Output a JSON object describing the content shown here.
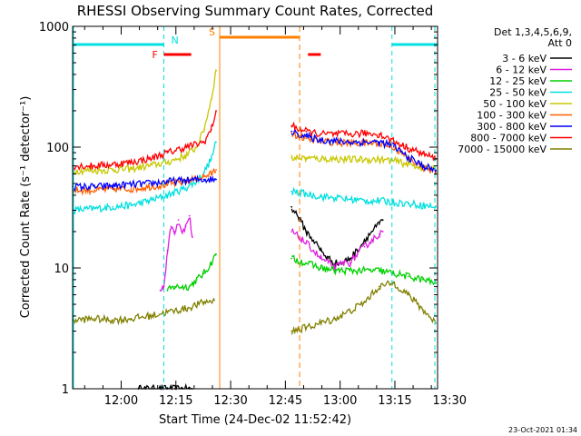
{
  "chart_data": {
    "type": "line",
    "title": "RHESSI Observing Summary Count Rates, Corrected",
    "xlabel": "Start Time (24-Dec-02 11:52:42)",
    "ylabel": "Corrected Count Rate (s⁻¹ detector⁻¹)",
    "y_scale": "log",
    "ylim": [
      1,
      1000
    ],
    "xlim_minutes": [
      -6,
      94
    ],
    "x_ticks": [
      {
        "minute": 7.3,
        "label": "12:00"
      },
      {
        "minute": 22.3,
        "label": "12:15"
      },
      {
        "minute": 37.3,
        "label": "12:30"
      },
      {
        "minute": 52.3,
        "label": "12:45"
      },
      {
        "minute": 67.3,
        "label": "13:00"
      },
      {
        "minute": 82.3,
        "label": "13:15"
      },
      {
        "minute": 97.3,
        "label": "13:30"
      }
    ],
    "y_ticks": [
      {
        "value": 1,
        "label": "1"
      },
      {
        "value": 10,
        "label": "10"
      },
      {
        "value": 100,
        "label": "100"
      },
      {
        "value": 1000,
        "label": "1000"
      }
    ],
    "legend_header": [
      "Det 1,3,4,5,6,9,",
      "Att 0"
    ],
    "series": [
      {
        "name": "3 - 6 keV",
        "color": "#000000",
        "x": [
          12,
          14,
          16,
          18,
          20,
          22,
          24,
          26,
          26.8
        ],
        "values": [
          1,
          1,
          1,
          1,
          1,
          1,
          1,
          1,
          1
        ]
      },
      {
        "name": "6 - 12 keV",
        "color": "#e020e0",
        "x": [
          18,
          19,
          20,
          21,
          22,
          23,
          24,
          25,
          26,
          26.8
        ],
        "values": [
          6.5,
          7,
          14,
          22,
          20,
          25,
          20,
          22,
          27,
          18
        ]
      },
      {
        "name": "12 - 25 keV",
        "color": "#00d000",
        "x": [
          20,
          22,
          24,
          26,
          27,
          28,
          30,
          32,
          33.3
        ],
        "values": [
          6.5,
          7,
          7,
          7,
          7.5,
          8,
          9,
          11,
          13
        ]
      },
      {
        "name": "25 - 50 keV",
        "color": "#00e0e0",
        "x": [
          -6,
          0,
          5,
          10,
          15,
          20,
          25,
          28,
          30,
          32,
          33.3
        ],
        "values": [
          30,
          31,
          32,
          33,
          36,
          40,
          46,
          52,
          62,
          80,
          110
        ]
      },
      {
        "name": "50 - 100 keV",
        "color": "#c8c800",
        "x": [
          -6,
          0,
          5,
          10,
          15,
          20,
          25,
          28,
          30,
          32,
          33.3
        ],
        "values": [
          64,
          64,
          65,
          66,
          70,
          75,
          85,
          100,
          140,
          250,
          430
        ]
      },
      {
        "name": "100 - 300 keV",
        "color": "#ff6000",
        "x": [
          -6,
          0,
          5,
          10,
          15,
          20,
          25,
          28,
          30,
          32,
          33.3
        ],
        "values": [
          44,
          44,
          45,
          45,
          47,
          49,
          52,
          55,
          57,
          60,
          65
        ]
      },
      {
        "name": "300 - 800 keV",
        "color": "#0000ff",
        "x": [
          -6,
          0,
          5,
          10,
          15,
          20,
          25,
          30,
          33.3
        ],
        "values": [
          47,
          47,
          48,
          49,
          50,
          52,
          53,
          54,
          54
        ]
      },
      {
        "name": "800 - 7000 keV",
        "color": "#ff0000",
        "x": [
          -6,
          0,
          5,
          10,
          15,
          20,
          25,
          30,
          32,
          33.3
        ],
        "values": [
          70,
          70,
          72,
          75,
          80,
          90,
          100,
          110,
          140,
          200
        ]
      },
      {
        "name": "7000 - 15000 keV",
        "color": "#808000",
        "x": [
          -6,
          0,
          5,
          10,
          15,
          20,
          25,
          30,
          32.8
        ],
        "values": [
          3.7,
          3.8,
          3.7,
          3.8,
          4.0,
          4.3,
          4.6,
          5.2,
          5.4
        ]
      }
    ],
    "series_after_gap": [
      {
        "name": "3 - 6 keV",
        "color": "#000000",
        "x": [
          54,
          56,
          58,
          60,
          62,
          64,
          66,
          68,
          70,
          72,
          74,
          76,
          78,
          79
        ],
        "values": [
          32,
          26,
          20,
          17,
          14,
          12,
          11,
          11,
          12,
          14,
          17,
          20,
          23,
          25
        ]
      },
      {
        "name": "6 - 12 keV",
        "color": "#e020e0",
        "x": [
          54,
          56,
          58,
          60,
          62,
          64,
          66,
          68,
          70,
          72,
          74,
          76,
          78,
          79
        ],
        "values": [
          20,
          18,
          16,
          14,
          12,
          11,
          10,
          11,
          11,
          13,
          15,
          17,
          19,
          20
        ]
      },
      {
        "name": "12 - 25 keV",
        "color": "#00d000",
        "x": [
          54,
          58,
          62,
          66,
          70,
          74,
          78,
          82,
          86,
          90,
          93.5
        ],
        "values": [
          12,
          11,
          10,
          9.5,
          9.5,
          9.5,
          9.5,
          9,
          8.5,
          8,
          7.5
        ]
      },
      {
        "name": "25 - 50 keV",
        "color": "#00e0e0",
        "x": [
          54,
          58,
          62,
          66,
          70,
          74,
          78,
          82,
          86,
          90,
          93.5
        ],
        "values": [
          43,
          41,
          39,
          38,
          37,
          36,
          36,
          35,
          34,
          33,
          32
        ]
      },
      {
        "name": "50 - 100 keV",
        "color": "#c8c800",
        "x": [
          54,
          58,
          62,
          66,
          70,
          74,
          78,
          82,
          86,
          90,
          93.5
        ],
        "values": [
          82,
          81,
          80,
          80,
          79,
          79,
          79,
          77,
          72,
          68,
          65
        ]
      },
      {
        "name": "100 - 300 keV",
        "color": "#ff6000",
        "x": [
          54,
          58,
          62,
          66,
          70,
          74,
          78,
          82,
          86,
          90,
          93.5
        ],
        "values": [
          130,
          118,
          112,
          110,
          108,
          108,
          108,
          100,
          80,
          68,
          62
        ]
      },
      {
        "name": "300 - 800 keV",
        "color": "#0000ff",
        "x": [
          54,
          58,
          62,
          66,
          70,
          74,
          78,
          82,
          86,
          90,
          93.5
        ],
        "values": [
          135,
          122,
          115,
          112,
          110,
          110,
          110,
          102,
          82,
          70,
          64
        ]
      },
      {
        "name": "800 - 7000 keV",
        "color": "#ff0000",
        "x": [
          54,
          58,
          62,
          66,
          70,
          74,
          78,
          82,
          86,
          90,
          93.5
        ],
        "values": [
          150,
          135,
          128,
          128,
          128,
          130,
          128,
          112,
          98,
          88,
          80
        ]
      },
      {
        "name": "7000 - 15000 keV",
        "color": "#808000",
        "x": [
          54,
          58,
          62,
          66,
          70,
          74,
          78,
          82,
          86,
          90,
          93.5
        ],
        "values": [
          3.0,
          3.2,
          3.5,
          3.8,
          4.4,
          5.2,
          7.0,
          7.5,
          6.0,
          4.5,
          3.5
        ]
      }
    ],
    "annotations": {
      "night_label": "N",
      "saa_label": "S",
      "flare_label": "F",
      "night_color": "#00e0e0",
      "saa_color": "#ff8000",
      "flare_color": "#ff0000",
      "night_intervals_minutes": [
        [
          -6,
          19
        ],
        [
          81.5,
          94
        ]
      ],
      "saa_interval_minutes": [
        34.3,
        56.2
      ],
      "flare_intervals_minutes": [
        [
          19,
          26.5
        ],
        [
          58.5,
          62
        ]
      ]
    },
    "footnote": "23-Oct-2021 01:34"
  }
}
